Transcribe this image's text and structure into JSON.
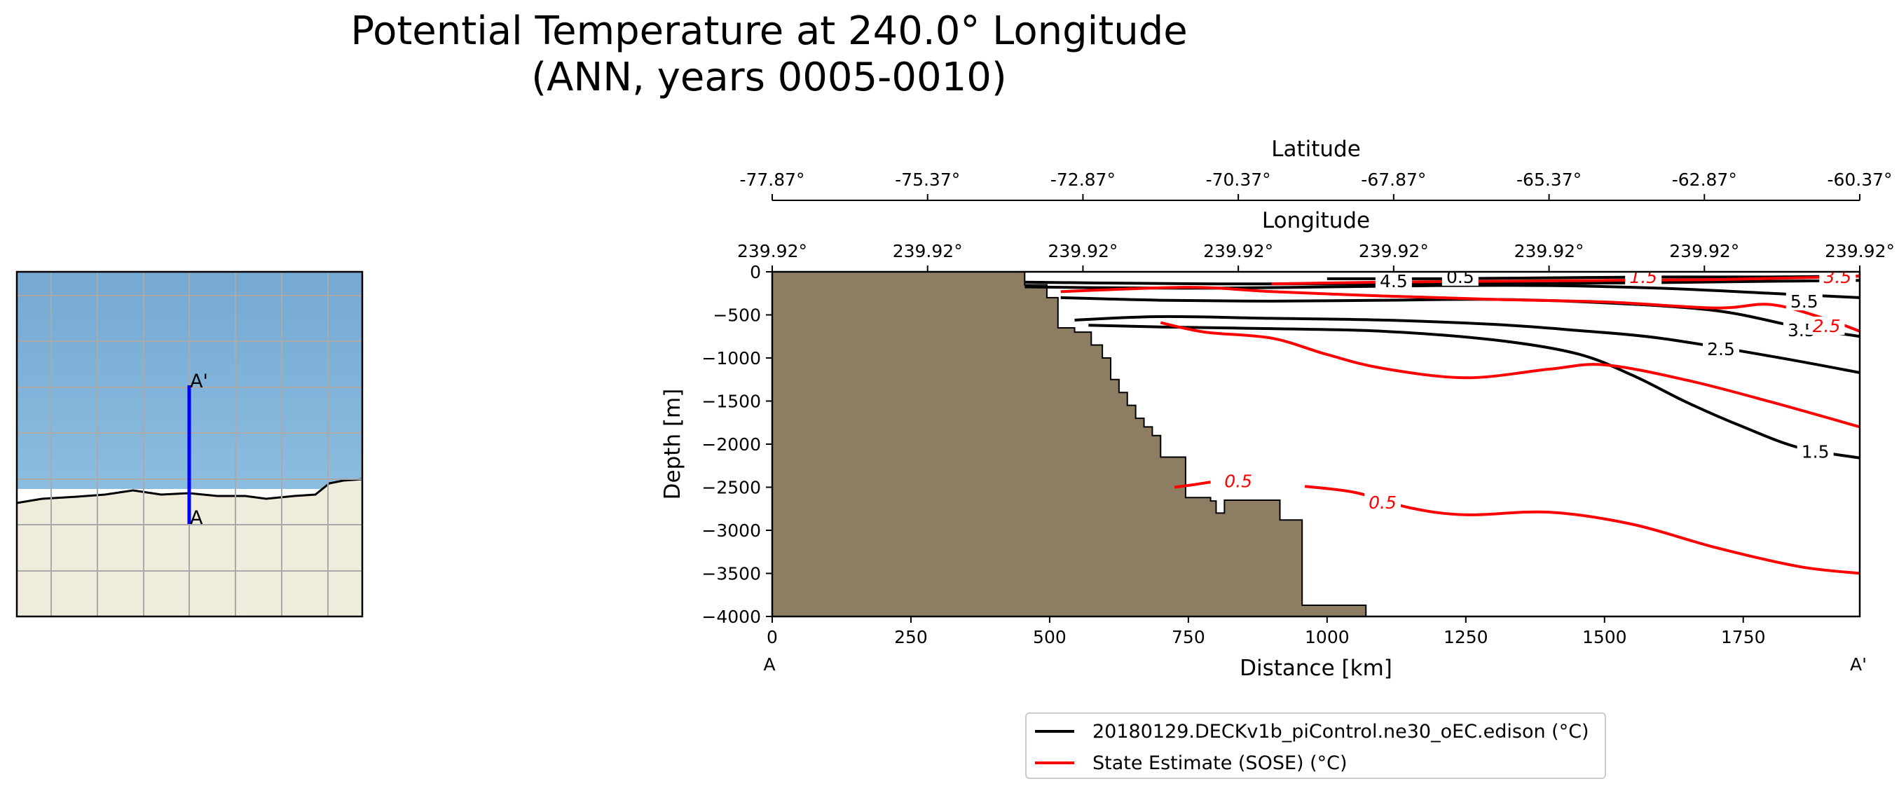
{
  "figure": {
    "title_line1": "Potential Temperature at 240.0° Longitude",
    "title_line2": "(ANN, years 0005-0010)"
  },
  "inset_map": {
    "start_label": "A",
    "end_label": "A'",
    "colors": {
      "ocean": "#7fb0d8",
      "land": "#efecdc",
      "transect": "#0000ff",
      "grid": "#aaaaaa"
    }
  },
  "chart_data": {
    "type": "contour",
    "title": "Potential Temperature at 240.0° Longitude (ANN, years 0005-0010)",
    "xlabel": "Distance [km]",
    "ylabel": "Depth [m]",
    "xlim": [
      0,
      1960
    ],
    "ylim": [
      -4000,
      0
    ],
    "x_ticks": [
      0,
      250,
      500,
      750,
      1000,
      1250,
      1500,
      1750
    ],
    "x_tick_labels": [
      "0",
      "250",
      "500",
      "750",
      "1000",
      "1250",
      "1500",
      "1750"
    ],
    "y_ticks": [
      0,
      -500,
      -1000,
      -1500,
      -2000,
      -2500,
      -3000,
      -3500,
      -4000
    ],
    "y_tick_labels": [
      "0",
      "−500",
      "−1000",
      "−1500",
      "−2000",
      "−2500",
      "−3000",
      "−3500",
      "−4000"
    ],
    "x_start_label": "A",
    "x_end_label": "A'",
    "top_axes": [
      {
        "label": "Latitude",
        "tick_km": [
          0,
          280,
          560,
          840,
          1120,
          1400,
          1680,
          1960
        ],
        "tick_labels": [
          "-77.87°",
          "-75.37°",
          "-72.87°",
          "-70.37°",
          "-67.87°",
          "-65.37°",
          "-62.87°",
          "-60.37°"
        ]
      },
      {
        "label": "Longitude",
        "tick_km": [
          0,
          280,
          560,
          840,
          1120,
          1400,
          1680,
          1960
        ],
        "tick_labels": [
          "239.92°",
          "239.92°",
          "239.92°",
          "239.92°",
          "239.92°",
          "239.92°",
          "239.92°",
          "239.92°"
        ]
      }
    ],
    "bathymetry": {
      "color": "#8c7d63",
      "points": [
        [
          0,
          0
        ],
        [
          455,
          0
        ],
        [
          455,
          -150
        ],
        [
          495,
          -150
        ],
        [
          495,
          -300
        ],
        [
          515,
          -300
        ],
        [
          515,
          -650
        ],
        [
          545,
          -650
        ],
        [
          545,
          -700
        ],
        [
          575,
          -700
        ],
        [
          575,
          -850
        ],
        [
          595,
          -850
        ],
        [
          595,
          -1000
        ],
        [
          610,
          -1000
        ],
        [
          610,
          -1250
        ],
        [
          625,
          -1250
        ],
        [
          625,
          -1400
        ],
        [
          640,
          -1400
        ],
        [
          640,
          -1550
        ],
        [
          655,
          -1550
        ],
        [
          655,
          -1700
        ],
        [
          670,
          -1700
        ],
        [
          670,
          -1800
        ],
        [
          685,
          -1800
        ],
        [
          685,
          -1900
        ],
        [
          700,
          -1900
        ],
        [
          700,
          -2150
        ],
        [
          745,
          -2150
        ],
        [
          745,
          -2620
        ],
        [
          790,
          -2620
        ],
        [
          790,
          -2660
        ],
        [
          800,
          -2660
        ],
        [
          800,
          -2800
        ],
        [
          815,
          -2800
        ],
        [
          815,
          -2650
        ],
        [
          915,
          -2650
        ],
        [
          915,
          -2880
        ],
        [
          955,
          -2880
        ],
        [
          955,
          -3870
        ],
        [
          1070,
          -3870
        ],
        [
          1070,
          -4000
        ],
        [
          0,
          -4000
        ]
      ]
    },
    "series": [
      {
        "name": "20180129.DECKv1b_piControl.ne30_oEC.edison (°C)",
        "color": "#000000",
        "contours": [
          {
            "level": 5.5,
            "label": "5.5",
            "label_at": [
              1860,
              -365
            ],
            "points": [
              [
                455,
                -120
              ],
              [
                600,
                -130
              ],
              [
                800,
                -140
              ],
              [
                1000,
                -140
              ],
              [
                1200,
                -140
              ],
              [
                1400,
                -135
              ],
              [
                1600,
                -125
              ],
              [
                1800,
                -110
              ],
              [
                1960,
                -100
              ]
            ]
          },
          {
            "level": 4.5,
            "label": "4.5",
            "label_at": [
              1120,
              -130
            ],
            "points": [
              [
                455,
                -175
              ],
              [
                600,
                -185
              ],
              [
                800,
                -190
              ],
              [
                1000,
                -175
              ],
              [
                1200,
                -160
              ],
              [
                1400,
                -160
              ],
              [
                1600,
                -190
              ],
              [
                1800,
                -250
              ],
              [
                1960,
                -300
              ]
            ]
          },
          {
            "level": 3.5,
            "label": "3.5",
            "label_at": [
              1855,
              -700
            ],
            "points": [
              [
                520,
                -300
              ],
              [
                700,
                -330
              ],
              [
                900,
                -340
              ],
              [
                1100,
                -330
              ],
              [
                1300,
                -320
              ],
              [
                1500,
                -360
              ],
              [
                1700,
                -450
              ],
              [
                1850,
                -640
              ],
              [
                1960,
                -750
              ]
            ]
          },
          {
            "level": 2.5,
            "label": "2.5",
            "label_at": [
              1710,
              -920
            ],
            "points": [
              [
                545,
                -560
              ],
              [
                700,
                -520
              ],
              [
                900,
                -540
              ],
              [
                1100,
                -560
              ],
              [
                1300,
                -610
              ],
              [
                1450,
                -680
              ],
              [
                1600,
                -770
              ],
              [
                1800,
                -980
              ],
              [
                1960,
                -1170
              ]
            ]
          },
          {
            "level": 1.5,
            "label": "1.5",
            "label_at": [
              1880,
              -2110
            ],
            "points": [
              [
                570,
                -620
              ],
              [
                700,
                -640
              ],
              [
                900,
                -660
              ],
              [
                1100,
                -690
              ],
              [
                1300,
                -790
              ],
              [
                1450,
                -950
              ],
              [
                1550,
                -1200
              ],
              [
                1650,
                -1520
              ],
              [
                1750,
                -1800
              ],
              [
                1850,
                -2040
              ],
              [
                1960,
                -2160
              ]
            ]
          },
          {
            "level": 0.5,
            "label": "0.5",
            "label_at": [
              1240,
              -80
            ],
            "points": [
              [
                1000,
                -80
              ],
              [
                1200,
                -80
              ],
              [
                1400,
                -70
              ],
              [
                1600,
                -60
              ],
              [
                1800,
                -60
              ],
              [
                1960,
                -50
              ]
            ]
          }
        ]
      },
      {
        "name": "State Estimate (SOSE) (°C)",
        "color": "#ff0000",
        "contours": [
          {
            "level": 0.5,
            "label": "0.5",
            "label_at": [
              1100,
              -2700
            ],
            "points": [
              [
                960,
                -2490
              ],
              [
                1050,
                -2560
              ],
              [
                1150,
                -2740
              ],
              [
                1250,
                -2820
              ],
              [
                1400,
                -2790
              ],
              [
                1550,
                -2930
              ],
              [
                1700,
                -3200
              ],
              [
                1850,
                -3420
              ],
              [
                1960,
                -3500
              ]
            ]
          },
          {
            "level": 0.5,
            "label": "0.5",
            "label_at": [
              840,
              -2450
            ],
            "points": [
              [
                725,
                -2500
              ],
              [
                760,
                -2470
              ],
              [
                790,
                -2440
              ]
            ]
          },
          {
            "level": 1.5,
            "label": "1.5",
            "label_at": [
              1570,
              -80
            ],
            "points": [
              [
                700,
                -590
              ],
              [
                780,
                -700
              ],
              [
                900,
                -770
              ],
              [
                1000,
                -960
              ],
              [
                1100,
                -1120
              ],
              [
                1250,
                -1230
              ],
              [
                1400,
                -1130
              ],
              [
                1500,
                -1080
              ],
              [
                1650,
                -1260
              ],
              [
                1800,
                -1510
              ],
              [
                1960,
                -1800
              ]
            ]
          },
          {
            "level": 2.5,
            "label": "2.5",
            "label_at": [
              1900,
              -650
            ],
            "points": [
              [
                520,
                -230
              ],
              [
                750,
                -180
              ],
              [
                900,
                -230
              ],
              [
                1100,
                -280
              ],
              [
                1300,
                -320
              ],
              [
                1500,
                -350
              ],
              [
                1700,
                -420
              ],
              [
                1800,
                -380
              ],
              [
                1900,
                -550
              ],
              [
                1960,
                -690
              ]
            ]
          },
          {
            "level": 3.5,
            "label": "3.5",
            "label_at": [
              1920,
              -80
            ],
            "points": [
              [
                900,
                -140
              ],
              [
                1100,
                -120
              ],
              [
                1300,
                -110
              ],
              [
                1500,
                -100
              ],
              [
                1700,
                -90
              ],
              [
                1850,
                -70
              ],
              [
                1960,
                -50
              ]
            ]
          }
        ]
      }
    ],
    "legend_position": "lower-center"
  }
}
